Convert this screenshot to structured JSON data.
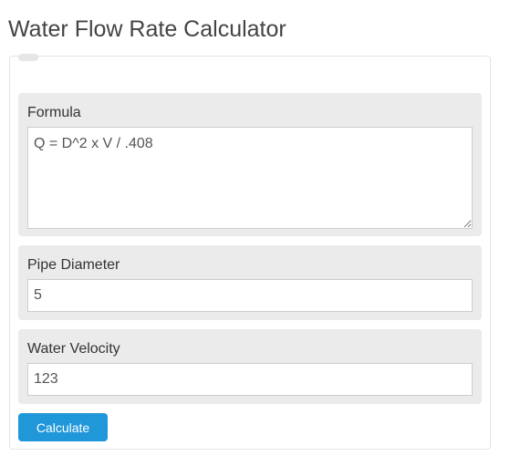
{
  "page": {
    "title": "Water Flow Rate Calculator"
  },
  "form": {
    "formula": {
      "label": "Formula",
      "value": "Q = D^2 x V / .408"
    },
    "pipe_diameter": {
      "label": "Pipe Diameter",
      "value": "5"
    },
    "water_velocity": {
      "label": "Water Velocity",
      "value": "123"
    },
    "calculate_label": "Calculate"
  },
  "colors": {
    "button": "#1f97d9",
    "group_background": "#ebebeb",
    "title_text": "#444444"
  }
}
